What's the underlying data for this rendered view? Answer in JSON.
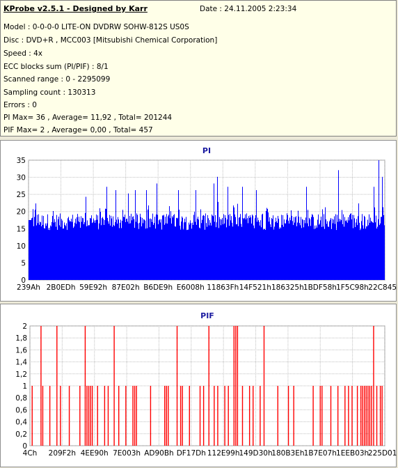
{
  "header": {
    "app_title": "KProbe v2.5.1 - Designed by Karr",
    "date": "Date : 24.11.2005 2:23:34"
  },
  "info_lines": [
    "Model : 0-0-0-0 LITE-ON DVDRW SOHW-812S  US0S",
    "Disc : DVD+R , MCC003 [Mitsubishi Chemical Corporation]",
    "Speed : 4x",
    "ECC blocks sum (PI/PIF) : 8/1",
    "Scanned range : 0 - 2295099",
    "Sampling count : 130313",
    "Errors : 0",
    "PI Max= 36 , Average= 11,92 , Total= 201244",
    "PIF Max= 2 , Average= 0,00 , Total= 457"
  ],
  "colors": {
    "pi_bar": "#0000ff",
    "pif_bar": "#ff0000",
    "title": "#1a1aa0",
    "grid": "#c0c0c0"
  },
  "chart_data": [
    {
      "type": "bar",
      "title": "PI",
      "xlabel": "",
      "ylabel": "",
      "ylim": [
        0,
        36
      ],
      "yticks": [
        "0",
        "5",
        "10",
        "15",
        "20",
        "25",
        "30",
        "35"
      ],
      "xticks": [
        "239Ah",
        "2B0EDh",
        "59E92h",
        "87E02h",
        "B6DE9h",
        "E6008h",
        "11863Fh",
        "14F521h",
        "186325h",
        "1BDF58h",
        "1F5C98h",
        "22C845h"
      ],
      "grid": true,
      "max": 36,
      "average": 11.92,
      "spikes": [
        {
          "pos": 0.02,
          "value": 23
        },
        {
          "pos": 0.16,
          "value": 25
        },
        {
          "pos": 0.22,
          "value": 28
        },
        {
          "pos": 0.245,
          "value": 27
        },
        {
          "pos": 0.28,
          "value": 26
        },
        {
          "pos": 0.3,
          "value": 27
        },
        {
          "pos": 0.33,
          "value": 27
        },
        {
          "pos": 0.36,
          "value": 29
        },
        {
          "pos": 0.42,
          "value": 27
        },
        {
          "pos": 0.47,
          "value": 27
        },
        {
          "pos": 0.52,
          "value": 29
        },
        {
          "pos": 0.53,
          "value": 31
        },
        {
          "pos": 0.56,
          "value": 28
        },
        {
          "pos": 0.6,
          "value": 28
        },
        {
          "pos": 0.64,
          "value": 27
        },
        {
          "pos": 0.78,
          "value": 28
        },
        {
          "pos": 0.87,
          "value": 33
        },
        {
          "pos": 0.97,
          "value": 28
        },
        {
          "pos": 0.985,
          "value": 36
        },
        {
          "pos": 0.995,
          "value": 31
        }
      ]
    },
    {
      "type": "bar",
      "title": "PIF",
      "xlabel": "",
      "ylabel": "",
      "ylim": [
        0,
        2
      ],
      "yticks": [
        "0",
        "0,2",
        "0,4",
        "0,6",
        "0,8",
        "1",
        "1,2",
        "1,4",
        "1,6",
        "1,8",
        "2"
      ],
      "xticks": [
        "4Ch",
        "209F2h",
        "4EE90h",
        "7E003h",
        "AD90Bh",
        "DF17Dh",
        "112E99h",
        "149D30h",
        "180B3Eh",
        "1B7E07h",
        "1EEB03h",
        "225D01h"
      ],
      "grid": true,
      "max": 2,
      "average": 0.0,
      "bars_value_2": [
        0.03,
        0.075,
        0.155,
        0.237,
        0.415,
        0.505,
        0.576,
        0.581,
        0.586,
        0.661,
        0.971
      ],
      "bars_value_1": [
        0.005,
        0.035,
        0.055,
        0.085,
        0.11,
        0.14,
        0.16,
        0.165,
        0.17,
        0.175,
        0.19,
        0.21,
        0.22,
        0.25,
        0.27,
        0.29,
        0.295,
        0.3,
        0.34,
        0.38,
        0.385,
        0.39,
        0.425,
        0.43,
        0.45,
        0.48,
        0.49,
        0.52,
        0.53,
        0.55,
        0.56,
        0.6,
        0.62,
        0.63,
        0.65,
        0.7,
        0.73,
        0.745,
        0.8,
        0.82,
        0.825,
        0.85,
        0.87,
        0.89,
        0.9,
        0.91,
        0.925,
        0.935,
        0.94,
        0.945,
        0.95,
        0.955,
        0.96,
        0.965,
        0.98,
        0.99,
        0.995
      ]
    }
  ]
}
